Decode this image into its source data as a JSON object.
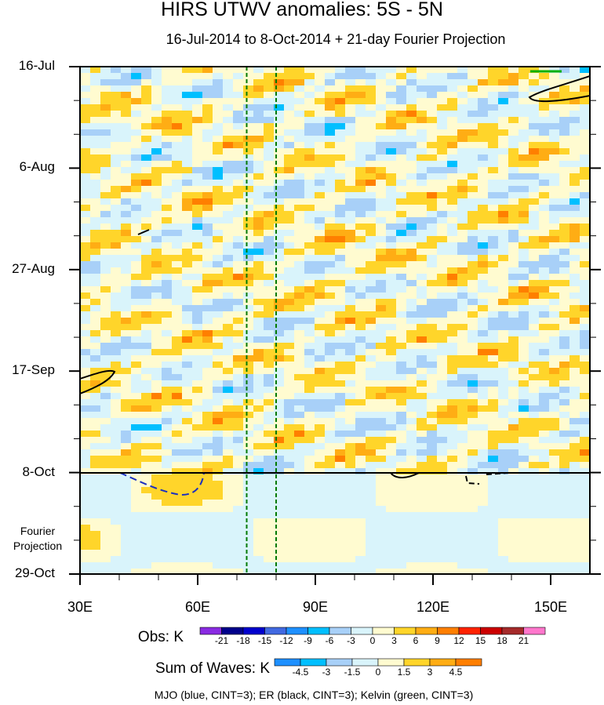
{
  "chart_data": {
    "type": "heatmap",
    "title": "HIRS UTWV anomalies: 5S - 5N",
    "subtitle": "16-Jul-2014 to 8-Oct-2014 + 21-day Fourier Projection",
    "x_tick_labels": [
      "30E",
      "60E",
      "90E",
      "120E",
      "150E"
    ],
    "x_ticks": [
      30,
      60,
      90,
      120,
      150
    ],
    "xlim": [
      30,
      160
    ],
    "y_tick_labels": [
      "16-Jul",
      "6-Aug",
      "27-Aug",
      "17-Sep",
      "8-Oct",
      "29-Oct"
    ],
    "y_ticks_day": [
      0,
      21,
      42,
      63,
      84,
      105
    ],
    "ylim_day": [
      0,
      105
    ],
    "projection_label": "Fourier Projection",
    "projection_start_label": "8-Oct",
    "guide_lines_lon": [
      72.5,
      80
    ],
    "obs_colorbar": {
      "title": "Obs: K",
      "labels": [
        "-21",
        "-18",
        "-15",
        "-12",
        "-9",
        "-6",
        "-3",
        "0",
        "3",
        "6",
        "9",
        "12",
        "15",
        "18",
        "21"
      ],
      "colors": [
        "#8a2be2",
        "#00008b",
        "#0000cd",
        "#4169e1",
        "#1e90ff",
        "#00bfff",
        "#a8d0f8",
        "#d9f4fb",
        "#fffbd0",
        "#ffd52a",
        "#ffad14",
        "#ff7f00",
        "#ff2200",
        "#cc0000",
        "#a52a2a",
        "#ff77cc"
      ]
    },
    "waves_colorbar": {
      "title": "Sum of Waves: K",
      "labels": [
        "-4.5",
        "-3",
        "-1.5",
        "0",
        "1.5",
        "3",
        "4.5"
      ],
      "colors": [
        "#1e90ff",
        "#00bfff",
        "#a8d0f8",
        "#d9f4fb",
        "#fffbd0",
        "#ffd52a",
        "#ffad14",
        "#ff7f00"
      ]
    },
    "footer": "MJO (blue, CINT=3); ER (black, CINT=3); Kelvin (green, CINT=3)"
  }
}
